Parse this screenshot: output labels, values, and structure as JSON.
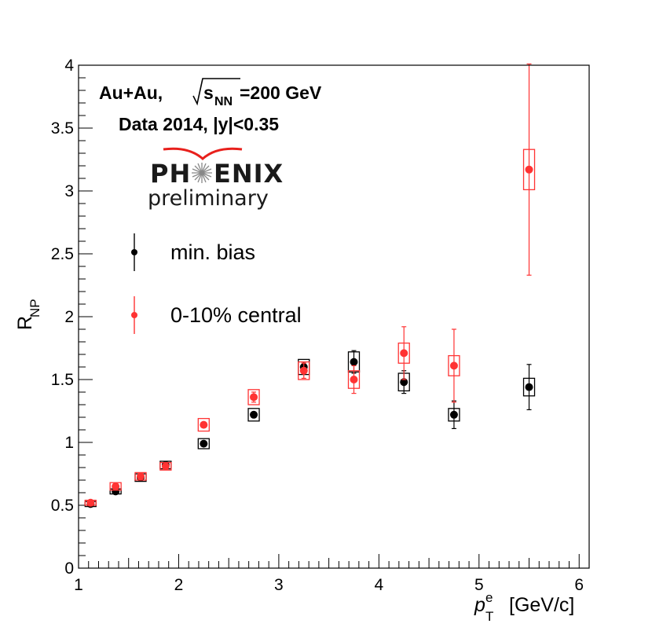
{
  "chart_data": {
    "type": "scatter",
    "xlabel_main": "p",
    "xlabel_sub": "T",
    "xlabel_sup": "e",
    "xlabel_unit": "[GeV/c]",
    "ylabel_main": "R",
    "ylabel_sub": "NP",
    "xlim": [
      1,
      6.1
    ],
    "ylim": [
      0,
      4
    ],
    "xticks": [
      1,
      2,
      3,
      4,
      5,
      6
    ],
    "yticks": [
      0,
      0.5,
      1,
      1.5,
      2,
      2.5,
      3,
      3.5,
      4
    ],
    "xtick_labels": [
      "1",
      "2",
      "3",
      "4",
      "5",
      "6"
    ],
    "ytick_labels": [
      "0",
      "0.5",
      "1",
      "1.5",
      "2",
      "2.5",
      "3",
      "3.5",
      "4"
    ],
    "annotation": {
      "line1_prefix": "Au+Au,",
      "sqrt_s": "s",
      "sqrt_sub": "NN",
      "line1_suffix": "=200 GeV",
      "line2": "Data 2014, |y|<0.35"
    },
    "logo": {
      "left": "PH",
      "right": "ENIX",
      "sub": "preliminary"
    },
    "legend": [
      {
        "label": "min. bias",
        "color": "#000000"
      },
      {
        "label": "0-10% central",
        "color": "#ff3333"
      }
    ],
    "series": [
      {
        "name": "min. bias",
        "color": "#000000",
        "points": [
          {
            "x": 1.12,
            "y": 0.51,
            "stat": 0.02,
            "sys": 0.02
          },
          {
            "x": 1.37,
            "y": 0.61,
            "stat": 0.02,
            "sys": 0.02
          },
          {
            "x": 1.62,
            "y": 0.72,
            "stat": 0.02,
            "sys": 0.03
          },
          {
            "x": 1.87,
            "y": 0.82,
            "stat": 0.02,
            "sys": 0.03
          },
          {
            "x": 2.25,
            "y": 0.99,
            "stat": 0.02,
            "sys": 0.04
          },
          {
            "x": 2.75,
            "y": 1.22,
            "stat": 0.02,
            "sys": 0.05
          },
          {
            "x": 3.25,
            "y": 1.6,
            "stat": 0.04,
            "sys": 0.06
          },
          {
            "x": 3.75,
            "y": 1.64,
            "stat": 0.09,
            "sys": 0.08
          },
          {
            "x": 4.25,
            "y": 1.48,
            "stat": 0.09,
            "sys": 0.07
          },
          {
            "x": 4.75,
            "y": 1.22,
            "stat": 0.11,
            "sys": 0.05
          },
          {
            "x": 5.5,
            "y": 1.44,
            "stat": 0.18,
            "sys": 0.07
          }
        ]
      },
      {
        "name": "0-10% central",
        "color": "#ff3333",
        "points": [
          {
            "x": 1.12,
            "y": 0.52,
            "stat": 0.02,
            "sys": 0.02
          },
          {
            "x": 1.37,
            "y": 0.65,
            "stat": 0.02,
            "sys": 0.03
          },
          {
            "x": 1.62,
            "y": 0.73,
            "stat": 0.02,
            "sys": 0.03
          },
          {
            "x": 1.87,
            "y": 0.81,
            "stat": 0.02,
            "sys": 0.03
          },
          {
            "x": 2.25,
            "y": 1.14,
            "stat": 0.02,
            "sys": 0.05
          },
          {
            "x": 2.75,
            "y": 1.36,
            "stat": 0.04,
            "sys": 0.06
          },
          {
            "x": 3.25,
            "y": 1.57,
            "stat": 0.06,
            "sys": 0.07
          },
          {
            "x": 3.75,
            "y": 1.5,
            "stat": 0.11,
            "sys": 0.07
          },
          {
            "x": 4.25,
            "y": 1.71,
            "stat": 0.21,
            "sys": 0.08
          },
          {
            "x": 4.75,
            "y": 1.61,
            "stat": 0.29,
            "sys": 0.08
          },
          {
            "x": 5.5,
            "y": 3.17,
            "stat": 0.84,
            "sys": 0.16
          }
        ]
      }
    ]
  }
}
